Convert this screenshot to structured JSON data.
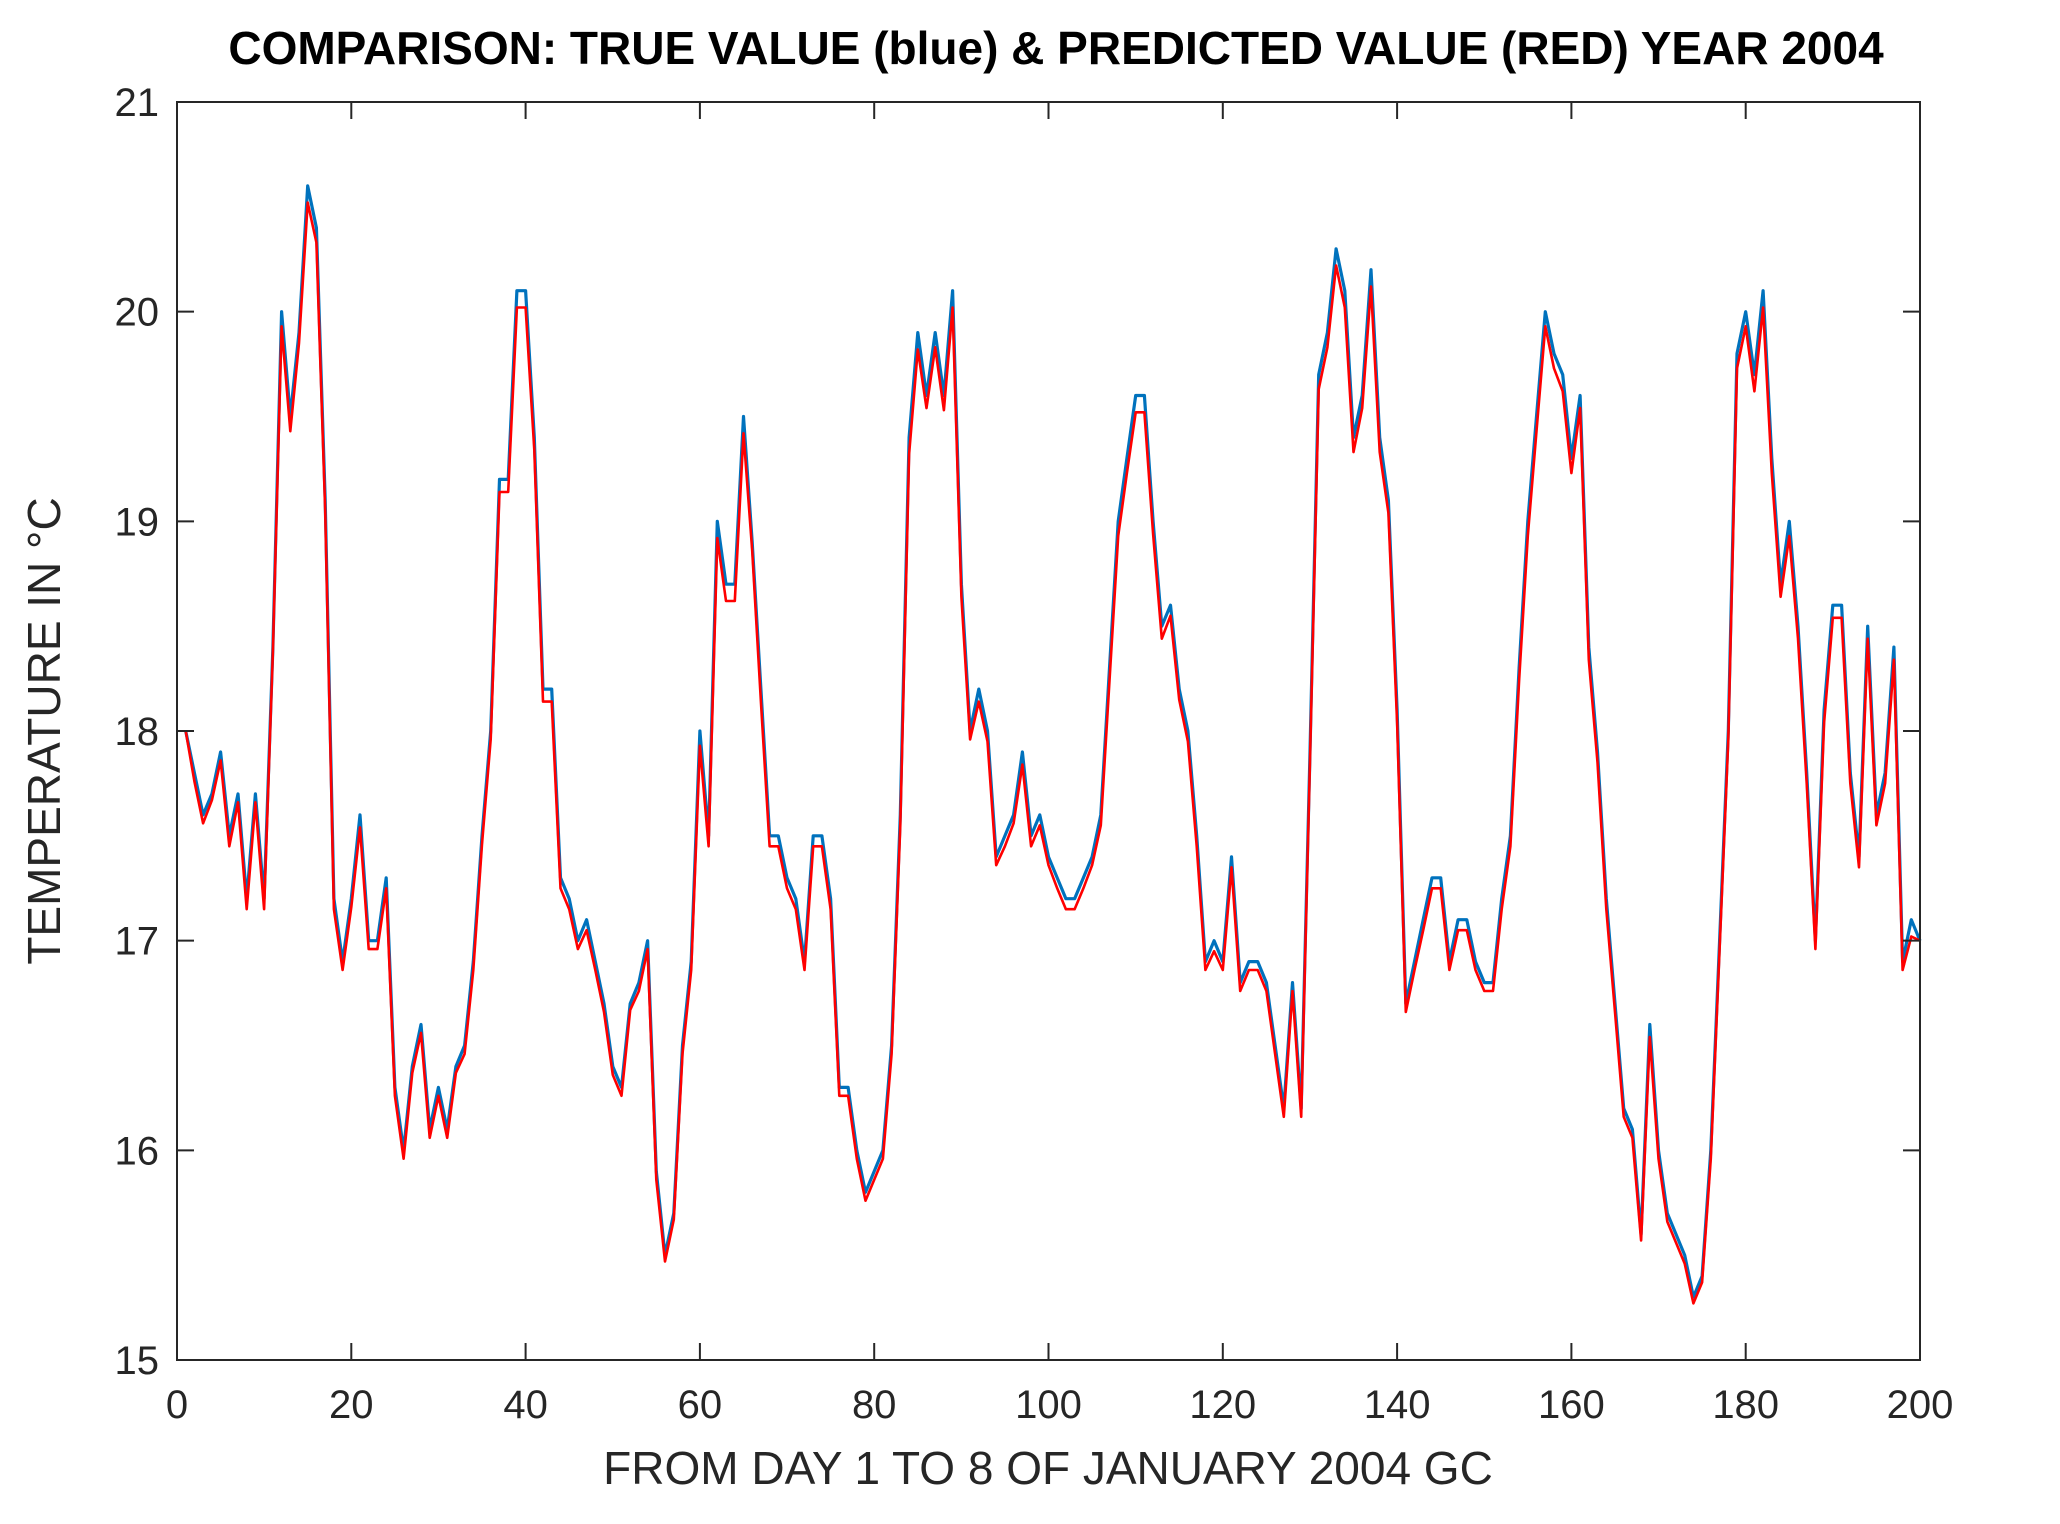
{
  "chart_data": {
    "type": "line",
    "title": "COMPARISON: TRUE VALUE (blue) & PREDICTED VALUE (RED) YEAR 2004",
    "xlabel": "FROM DAY 1 TO 8 OF JANUARY 2004 GC",
    "ylabel": "TEMPERATURE IN °C",
    "xlim": [
      0,
      200
    ],
    "ylim": [
      15,
      21
    ],
    "xticks": [
      0,
      20,
      40,
      60,
      80,
      100,
      120,
      140,
      160,
      180,
      200
    ],
    "yticks": [
      15,
      16,
      17,
      18,
      19,
      20,
      21
    ],
    "xtick_labels": [
      "0",
      "20",
      "40",
      "60",
      "80",
      "100",
      "120",
      "140",
      "160",
      "180",
      "200"
    ],
    "ytick_labels": [
      "15",
      "16",
      "17",
      "18",
      "19",
      "20",
      "21"
    ],
    "grid": false,
    "legend": "none",
    "x": [
      1,
      2,
      3,
      4,
      5,
      6,
      7,
      8,
      9,
      10,
      11,
      12,
      13,
      14,
      15,
      16,
      17,
      18,
      19,
      20,
      21,
      22,
      23,
      24,
      25,
      26,
      27,
      28,
      29,
      30,
      31,
      32,
      33,
      34,
      35,
      36,
      37,
      38,
      39,
      40,
      41,
      42,
      43,
      44,
      45,
      46,
      47,
      48,
      49,
      50,
      51,
      52,
      53,
      54,
      55,
      56,
      57,
      58,
      59,
      60,
      61,
      62,
      63,
      64,
      65,
      66,
      67,
      68,
      69,
      70,
      71,
      72,
      73,
      74,
      75,
      76,
      77,
      78,
      79,
      80,
      81,
      82,
      83,
      84,
      85,
      86,
      87,
      88,
      89,
      90,
      91,
      92,
      93,
      94,
      95,
      96,
      97,
      98,
      99,
      100,
      101,
      102,
      103,
      104,
      105,
      106,
      107,
      108,
      109,
      110,
      111,
      112,
      113,
      114,
      115,
      116,
      117,
      118,
      119,
      120,
      121,
      122,
      123,
      124,
      125,
      126,
      127,
      128,
      129,
      130,
      131,
      132,
      133,
      134,
      135,
      136,
      137,
      138,
      139,
      140,
      141,
      142,
      143,
      144,
      145,
      146,
      147,
      148,
      149,
      150,
      151,
      152,
      153,
      154,
      155,
      156,
      157,
      158,
      159,
      160,
      161,
      162,
      163,
      164,
      165,
      166,
      167,
      168,
      169,
      170,
      171,
      172,
      173,
      174,
      175,
      176,
      177,
      178,
      179,
      180,
      181,
      182,
      183,
      184,
      185,
      186,
      187,
      188,
      189,
      190,
      191,
      192,
      193,
      194,
      195,
      196,
      197,
      198,
      199,
      200
    ],
    "series": [
      {
        "color": "#0072bd",
        "values": [
          18.0,
          17.8,
          17.6,
          17.7,
          17.9,
          17.5,
          17.7,
          17.2,
          17.7,
          17.2,
          18.4,
          20.0,
          19.5,
          19.9,
          20.6,
          20.4,
          19.1,
          17.2,
          16.9,
          17.2,
          17.6,
          17.0,
          17.0,
          17.3,
          16.3,
          16.0,
          16.4,
          16.6,
          16.1,
          16.3,
          16.1,
          16.4,
          16.5,
          16.9,
          17.5,
          18.0,
          19.2,
          19.2,
          20.1,
          20.1,
          19.4,
          18.2,
          18.2,
          17.3,
          17.2,
          17.0,
          17.1,
          16.9,
          16.7,
          16.4,
          16.3,
          16.7,
          16.8,
          17.0,
          15.9,
          15.5,
          15.7,
          16.5,
          16.9,
          18.0,
          17.5,
          19.0,
          18.7,
          18.7,
          19.5,
          18.9,
          18.2,
          17.5,
          17.5,
          17.3,
          17.2,
          16.9,
          17.5,
          17.5,
          17.2,
          16.3,
          16.3,
          16.0,
          15.8,
          15.9,
          16.0,
          16.5,
          17.6,
          19.4,
          19.9,
          19.6,
          19.9,
          19.6,
          20.1,
          18.7,
          18.0,
          18.2,
          18.0,
          17.4,
          17.5,
          17.6,
          17.9,
          17.5,
          17.6,
          17.4,
          17.3,
          17.2,
          17.2,
          17.3,
          17.4,
          17.6,
          18.3,
          19.0,
          19.3,
          19.6,
          19.6,
          19.0,
          18.5,
          18.6,
          18.2,
          18.0,
          17.5,
          16.9,
          17.0,
          16.9,
          17.4,
          16.8,
          16.9,
          16.9,
          16.8,
          16.5,
          16.2,
          16.8,
          16.2,
          17.9,
          19.7,
          19.9,
          20.3,
          20.1,
          19.4,
          19.6,
          20.2,
          19.4,
          19.1,
          18.1,
          16.7,
          16.9,
          17.1,
          17.3,
          17.3,
          16.9,
          17.1,
          17.1,
          16.9,
          16.8,
          16.8,
          17.2,
          17.5,
          18.3,
          19.0,
          19.5,
          20.0,
          19.8,
          19.7,
          19.3,
          19.6,
          18.4,
          17.9,
          17.2,
          16.7,
          16.2,
          16.1,
          15.6,
          16.6,
          16.0,
          15.7,
          15.6,
          15.5,
          15.3,
          15.4,
          16.0,
          17.0,
          18.0,
          19.8,
          20.0,
          19.7,
          20.1,
          19.3,
          18.7,
          19.0,
          18.5,
          17.8,
          17.0,
          18.1,
          18.6,
          18.6,
          17.8,
          17.4,
          18.5,
          17.6,
          17.8,
          18.4,
          16.9,
          17.1,
          17.0
        ]
      },
      {
        "color": "#ff0000",
        "values": [
          18.0,
          17.76,
          17.56,
          17.67,
          17.86,
          17.45,
          17.66,
          17.15,
          17.66,
          17.15,
          18.38,
          19.93,
          19.43,
          19.85,
          20.52,
          20.33,
          19.05,
          17.15,
          16.86,
          17.16,
          17.54,
          16.96,
          16.96,
          17.25,
          16.26,
          15.96,
          16.37,
          16.56,
          16.06,
          16.26,
          16.06,
          16.37,
          16.46,
          16.86,
          17.46,
          17.96,
          19.14,
          19.14,
          20.02,
          20.02,
          19.34,
          18.14,
          18.14,
          17.25,
          17.15,
          16.96,
          17.05,
          16.86,
          16.66,
          16.36,
          16.26,
          16.67,
          16.76,
          16.96,
          15.86,
          15.47,
          15.67,
          16.46,
          16.86,
          17.93,
          17.45,
          18.92,
          18.62,
          18.62,
          19.42,
          18.86,
          18.14,
          17.45,
          17.45,
          17.25,
          17.15,
          16.86,
          17.45,
          17.45,
          17.15,
          16.26,
          16.26,
          15.96,
          15.76,
          15.86,
          15.96,
          16.46,
          17.55,
          19.32,
          19.82,
          19.54,
          19.83,
          19.53,
          20.02,
          18.64,
          17.96,
          18.14,
          17.95,
          17.36,
          17.45,
          17.56,
          17.84,
          17.45,
          17.55,
          17.36,
          17.25,
          17.15,
          17.15,
          17.25,
          17.36,
          17.55,
          18.24,
          18.93,
          19.23,
          19.52,
          19.52,
          18.94,
          18.44,
          18.55,
          18.15,
          17.95,
          17.45,
          16.86,
          16.95,
          16.86,
          17.35,
          16.76,
          16.86,
          16.86,
          16.76,
          16.46,
          16.16,
          16.76,
          16.16,
          17.86,
          19.63,
          19.83,
          20.22,
          20.02,
          19.33,
          19.54,
          20.12,
          19.33,
          19.04,
          18.04,
          16.66,
          16.86,
          17.05,
          17.25,
          17.25,
          16.86,
          17.05,
          17.05,
          16.86,
          16.76,
          16.76,
          17.15,
          17.45,
          18.24,
          18.93,
          19.43,
          19.93,
          19.73,
          19.62,
          19.23,
          19.54,
          18.34,
          17.85,
          17.15,
          16.66,
          16.16,
          16.06,
          15.57,
          16.54,
          15.96,
          15.66,
          15.56,
          15.46,
          15.27,
          15.37,
          15.96,
          16.96,
          17.96,
          19.73,
          19.93,
          19.62,
          20.02,
          19.23,
          18.64,
          18.93,
          18.44,
          17.75,
          16.96,
          18.04,
          18.54,
          18.54,
          17.75,
          17.35,
          18.44,
          17.55,
          17.75,
          18.34,
          16.86,
          17.02,
          17.0
        ]
      }
    ]
  }
}
